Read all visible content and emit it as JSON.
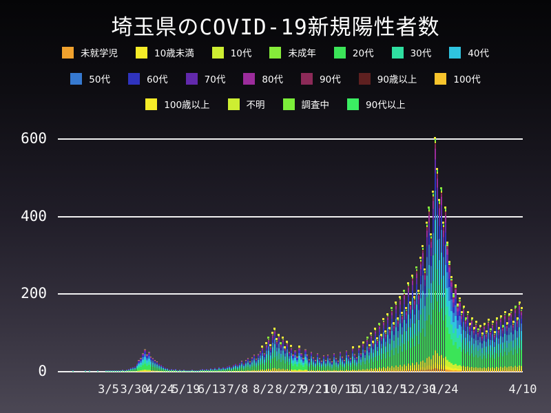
{
  "title": "埼玉県のCOVID-19新規陽性者数",
  "colors": {
    "background_top": "#050507",
    "background_bottom": "#4b4754",
    "grid": "#f2f2f2",
    "text": "#ffffff",
    "cap_dot": "#f2e93c",
    "cap_dot_alt": "#8ae83c"
  },
  "legend": {
    "rows": [
      [
        {
          "label": "未就学児",
          "color": "#f0a22e"
        },
        {
          "label": "10歳未満",
          "color": "#f5ec28"
        },
        {
          "label": "10代",
          "color": "#cdee32"
        },
        {
          "label": "未成年",
          "color": "#86ec3a"
        },
        {
          "label": "20代",
          "color": "#3be458"
        },
        {
          "label": "30代",
          "color": "#2fdfa0"
        },
        {
          "label": "40代",
          "color": "#2fc4e0"
        }
      ],
      [
        {
          "label": "50代",
          "color": "#3679d0"
        },
        {
          "label": "60代",
          "color": "#2f33be"
        },
        {
          "label": "70代",
          "color": "#6229ac"
        },
        {
          "label": "80代",
          "color": "#9c2c9c"
        },
        {
          "label": "90代",
          "color": "#8c2a58"
        },
        {
          "label": "90歳以上",
          "color": "#5e2020"
        },
        {
          "label": "100代",
          "color": "#f8c42c"
        }
      ],
      [
        {
          "label": "100歳以上",
          "color": "#f5ec28"
        },
        {
          "label": "不明",
          "color": "#cdee32"
        },
        {
          "label": "調査中",
          "color": "#7cee3a"
        },
        {
          "label": "90代以上",
          "color": "#3bee62"
        }
      ]
    ]
  },
  "chart_data": {
    "type": "bar",
    "subtype": "stacked-daily-bars",
    "title": "埼玉県のCOVID-19新規陽性者数",
    "xlabel": "",
    "ylabel": "",
    "ylim": [
      0,
      623
    ],
    "y_ticks": [
      0,
      200,
      400,
      600
    ],
    "grid": "horizontal",
    "legend_position": "top",
    "x_domain_days": 450,
    "sample_interval_days": 2,
    "x_ticks": [
      {
        "label": "3/5",
        "day": 49
      },
      {
        "label": "3/30",
        "day": 74
      },
      {
        "label": "4/24",
        "day": 99
      },
      {
        "label": "5/19",
        "day": 124
      },
      {
        "label": "6/13",
        "day": 149
      },
      {
        "label": "7/8",
        "day": 174
      },
      {
        "label": "8/2",
        "day": 199
      },
      {
        "label": "8/27",
        "day": 224
      },
      {
        "label": "9/21",
        "day": 249
      },
      {
        "label": "10/16",
        "day": 274
      },
      {
        "label": "11/10",
        "day": 299
      },
      {
        "label": "12/5",
        "day": 324
      },
      {
        "label": "12/30",
        "day": 349
      },
      {
        "label": "1/24",
        "day": 374
      },
      {
        "label": "4/10",
        "day": 450
      }
    ],
    "age_groups": [
      {
        "label": "未就学児",
        "color": "#f0a22e",
        "share": 0.015
      },
      {
        "label": "10歳未満",
        "color": "#f5ec28",
        "share": 0.025
      },
      {
        "label": "10代",
        "color": "#cdee32",
        "share": 0.05
      },
      {
        "label": "未成年",
        "color": "#86ec3a",
        "share": 0.003
      },
      {
        "label": "20代",
        "color": "#3be458",
        "share": 0.255
      },
      {
        "label": "30代",
        "color": "#2fdfa0",
        "share": 0.16
      },
      {
        "label": "40代",
        "color": "#2fc4e0",
        "share": 0.145
      },
      {
        "label": "50代",
        "color": "#3679d0",
        "share": 0.125
      },
      {
        "label": "60代",
        "color": "#2f33be",
        "share": 0.075
      },
      {
        "label": "70代",
        "color": "#6229ac",
        "share": 0.06
      },
      {
        "label": "80代",
        "color": "#9c2c9c",
        "share": 0.045
      },
      {
        "label": "90代",
        "color": "#8c2a58",
        "share": 0.02
      },
      {
        "label": "90歳以上",
        "color": "#5e2020",
        "share": 0.004
      },
      {
        "label": "100代",
        "color": "#f8c42c",
        "share": 0.001
      },
      {
        "label": "100歳以上",
        "color": "#f5ec28",
        "share": 0.001
      },
      {
        "label": "不明",
        "color": "#cdee32",
        "share": 0.006
      },
      {
        "label": "調査中",
        "color": "#7cee3a",
        "share": 0.005
      },
      {
        "label": "90代以上",
        "color": "#3bee62",
        "share": 0.005
      }
    ],
    "daily_totals_sampled": [
      0,
      0,
      0,
      0,
      0,
      0,
      0,
      1,
      0,
      0,
      0,
      0,
      0,
      1,
      0,
      1,
      0,
      0,
      0,
      1,
      0,
      0,
      0,
      1,
      2,
      2,
      1,
      3,
      2,
      4,
      3,
      5,
      4,
      6,
      8,
      10,
      13,
      15,
      22,
      30,
      36,
      48,
      58,
      45,
      52,
      40,
      36,
      30,
      27,
      22,
      17,
      14,
      11,
      9,
      6,
      8,
      5,
      7,
      4,
      6,
      3,
      5,
      2,
      4,
      3,
      5,
      3,
      4,
      4,
      6,
      7,
      5,
      8,
      6,
      9,
      7,
      10,
      8,
      12,
      9,
      13,
      11,
      14,
      16,
      13,
      18,
      21,
      17,
      24,
      28,
      22,
      30,
      35,
      27,
      38,
      44,
      34,
      47,
      54,
      62,
      48,
      70,
      84,
      64,
      96,
      108,
      80,
      92,
      71,
      84,
      60,
      74,
      52,
      63,
      45,
      56,
      40,
      62,
      48,
      36,
      58,
      44,
      32,
      52,
      38,
      30,
      48,
      35,
      28,
      42,
      30,
      45,
      34,
      26,
      48,
      36,
      29,
      52,
      40,
      31,
      56,
      42,
      35,
      60,
      46,
      38,
      62,
      48,
      72,
      55,
      84,
      64,
      95,
      74,
      108,
      82,
      120,
      92,
      132,
      100,
      145,
      110,
      160,
      122,
      175,
      135,
      190,
      148,
      205,
      160,
      225,
      175,
      245,
      190,
      265,
      205,
      290,
      320,
      260,
      380,
      420,
      350,
      460,
      600,
      520,
      440,
      470,
      380,
      420,
      330,
      280,
      240,
      195,
      220,
      170,
      185,
      150,
      165,
      135,
      150,
      120,
      135,
      110,
      125,
      105,
      115,
      95,
      120,
      100,
      130,
      105,
      125,
      98,
      135,
      110,
      140,
      115,
      150,
      122,
      145,
      155,
      125,
      165,
      135,
      175,
      160
    ]
  }
}
